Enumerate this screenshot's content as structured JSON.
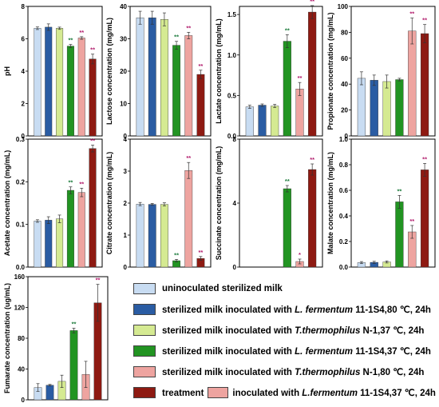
{
  "colors": {
    "groups": [
      "#c8dcf2",
      "#2a5ca3",
      "#d5ea92",
      "#229422",
      "#eea4a0",
      "#8e1a12"
    ],
    "sig_green": "#1a7a3a",
    "sig_red": "#b0186a"
  },
  "chart_data": [
    {
      "type": "bar",
      "ylabel": "pH",
      "ylim": [
        0,
        8
      ],
      "yticks": [
        0,
        2,
        4,
        6,
        8
      ],
      "values": [
        6.65,
        6.72,
        6.65,
        5.55,
        6.05,
        4.75
      ],
      "errors": [
        0.08,
        0.2,
        0.07,
        0.1,
        0.08,
        0.3
      ],
      "significance": [
        "",
        "",
        "",
        "**",
        "**",
        "**"
      ],
      "sig_colors": [
        "",
        "",
        "",
        "green",
        "red",
        "red"
      ]
    },
    {
      "type": "bar",
      "ylabel": "Lactose concentration (mg/mL)",
      "ylim": [
        0,
        40
      ],
      "yticks": [
        0,
        10,
        20,
        30,
        40
      ],
      "values": [
        36.5,
        36.5,
        36.0,
        28.0,
        31.0,
        19.0
      ],
      "errors": [
        2.0,
        2.0,
        2.0,
        1.2,
        1.0,
        1.3
      ],
      "significance": [
        "",
        "",
        "",
        "**",
        "**",
        "**"
      ],
      "sig_colors": [
        "",
        "",
        "",
        "green",
        "red",
        "red"
      ]
    },
    {
      "type": "bar",
      "ylabel": "Lactate concentration (mg/mL)",
      "ylim": [
        0,
        1.6
      ],
      "yticks": [
        0.0,
        0.5,
        1.0,
        1.5
      ],
      "tick_format": "1",
      "values": [
        0.36,
        0.38,
        0.37,
        1.17,
        0.58,
        1.53
      ],
      "errors": [
        0.02,
        0.015,
        0.02,
        0.08,
        0.08,
        0.08
      ],
      "significance": [
        "",
        "",
        "",
        "**",
        "**",
        "**"
      ],
      "sig_colors": [
        "",
        "",
        "",
        "green",
        "red",
        "red"
      ]
    },
    {
      "type": "bar",
      "ylabel": "Propionate concentration (mg/mL)",
      "ylim": [
        0,
        100
      ],
      "yticks": [
        0,
        20,
        40,
        60,
        80,
        100
      ],
      "values": [
        44.5,
        43.0,
        42.0,
        43.5,
        81.0,
        79.0
      ],
      "errors": [
        5.0,
        4.0,
        5.0,
        1.0,
        10.0,
        7.0
      ],
      "significance": [
        "",
        "",
        "",
        "",
        "**",
        "**"
      ],
      "sig_colors": [
        "",
        "",
        "",
        "",
        "red",
        "red"
      ]
    },
    {
      "type": "bar",
      "ylabel": "Acetate concentration (mg/mL)",
      "ylim": [
        0,
        0.3
      ],
      "yticks": [
        0.0,
        0.1,
        0.2,
        0.3
      ],
      "tick_format": "1",
      "values": [
        0.108,
        0.11,
        0.113,
        0.18,
        0.175,
        0.278
      ],
      "errors": [
        0.003,
        0.008,
        0.009,
        0.008,
        0.01,
        0.008
      ],
      "significance": [
        "",
        "",
        "",
        "**",
        "**",
        "**"
      ],
      "sig_colors": [
        "",
        "",
        "",
        "green",
        "red",
        "red"
      ]
    },
    {
      "type": "bar",
      "ylabel": "Citrate concentration (mg/mL)",
      "ylim": [
        0,
        4
      ],
      "yticks": [
        0,
        1,
        2,
        3,
        4
      ],
      "values": [
        1.97,
        1.96,
        1.96,
        0.2,
        3.02,
        0.27
      ],
      "errors": [
        0.05,
        0.03,
        0.05,
        0.04,
        0.25,
        0.06
      ],
      "significance": [
        "",
        "",
        "",
        "**",
        "**",
        "**"
      ],
      "sig_colors": [
        "",
        "",
        "",
        "green",
        "red",
        "red"
      ]
    },
    {
      "type": "bar",
      "ylabel": "Succinate concentration (mg/mL)",
      "ylim": [
        0,
        8
      ],
      "yticks": [
        0,
        4,
        8
      ],
      "values": [
        0,
        0,
        0,
        4.9,
        0.35,
        6.1
      ],
      "errors": [
        0,
        0,
        0,
        0.2,
        0.15,
        0.35
      ],
      "significance": [
        "",
        "",
        "",
        "**",
        "*",
        "**"
      ],
      "sig_colors": [
        "",
        "",
        "",
        "green",
        "red",
        "red"
      ]
    },
    {
      "type": "bar",
      "ylabel": "Malate concentration (mg/mL)",
      "ylim": [
        0,
        1.0
      ],
      "yticks": [
        0.0,
        0.2,
        0.4,
        0.6,
        0.8,
        1.0
      ],
      "tick_format": "1",
      "values": [
        0.035,
        0.037,
        0.04,
        0.51,
        0.275,
        0.76
      ],
      "errors": [
        0.008,
        0.008,
        0.008,
        0.05,
        0.05,
        0.05
      ],
      "significance": [
        "",
        "",
        "",
        "**",
        "**",
        "**"
      ],
      "sig_colors": [
        "",
        "",
        "",
        "green",
        "red",
        "red"
      ]
    },
    {
      "type": "bar",
      "ylabel": "Fumarate concentration (ug/mL)",
      "ylim": [
        0,
        160
      ],
      "yticks": [
        0,
        40,
        80,
        120,
        160
      ],
      "values": [
        16,
        19,
        24,
        90,
        33,
        126
      ],
      "errors": [
        5,
        1,
        8,
        3,
        17,
        24
      ],
      "significance": [
        "",
        "",
        "",
        "**",
        "",
        "**"
      ],
      "sig_colors": [
        "",
        "",
        "",
        "green",
        "",
        "red"
      ]
    }
  ],
  "legend": [
    {
      "label": "uninoculated sterilized milk"
    },
    {
      "prefix": "sterilized milk inoculated with ",
      "strain": "L. fermentum",
      "suffix": " 11-1S4,80 ℃, 24h"
    },
    {
      "prefix": "sterilized milk inoculated with ",
      "strain": "T.thermophilus",
      "suffix": " N-1,37 ℃, 24h"
    },
    {
      "prefix": "sterilized milk inoculated with ",
      "strain": "L. fermentum",
      "suffix": " 11-1S4,37 ℃, 24h"
    },
    {
      "prefix": "sterilized milk inoculated with ",
      "strain": "T.thermophilus",
      "suffix": " N-1,80 ℃, 24h"
    },
    {
      "prefix": "treatment",
      "mid": "inoculated with ",
      "strain": "L.fermentum",
      "suffix": " 11-1S4,37 ℃, 24h"
    }
  ]
}
